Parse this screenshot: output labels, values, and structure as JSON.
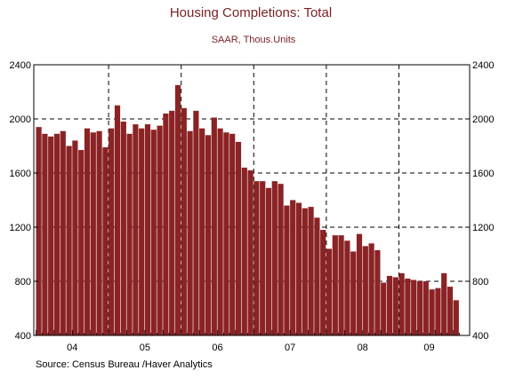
{
  "chart_data": {
    "type": "bar",
    "title": "Housing Completions: Total",
    "subtitle": "SAAR, Thous.Units",
    "source": "Source:  Census Bureau /Haver Analytics",
    "ylim": [
      400,
      2400
    ],
    "yticks": [
      400,
      800,
      1200,
      1600,
      2000,
      2400
    ],
    "ytick_labels": [
      "400",
      "800",
      "1200",
      "1600",
      "2000",
      "2400"
    ],
    "x_labels": [
      "04",
      "05",
      "06",
      "07",
      "08",
      "09"
    ],
    "grid": "dashed, vertical at year boundaries, horizontal at 2000/1600/1200/800",
    "color": "#8b2325",
    "values": [
      1940,
      1890,
      1870,
      1890,
      1910,
      1800,
      1840,
      1770,
      1930,
      1900,
      1910,
      1790,
      1930,
      2100,
      1980,
      1890,
      1960,
      1930,
      1960,
      1920,
      1950,
      2040,
      2060,
      2250,
      2080,
      1910,
      2060,
      1930,
      1880,
      2010,
      1930,
      1900,
      1890,
      1830,
      1640,
      1620,
      1540,
      1540,
      1490,
      1540,
      1520,
      1360,
      1400,
      1380,
      1340,
      1350,
      1270,
      1180,
      1040,
      1140,
      1140,
      1100,
      1020,
      1150,
      1060,
      1080,
      1030,
      790,
      840,
      830,
      860,
      820,
      810,
      800,
      800,
      740,
      750,
      860,
      760,
      660
    ]
  }
}
